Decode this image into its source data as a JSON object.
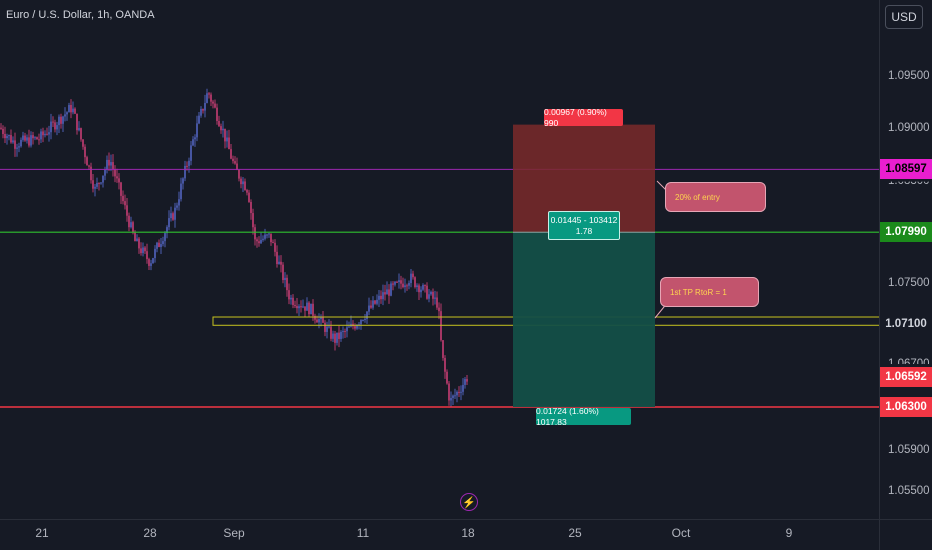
{
  "header": {
    "symbol_text": "Euro / U.S. Dollar, 1h, OANDA",
    "currency_button": "USD"
  },
  "price_axis": {
    "ticks": [
      "1.09500",
      "1.09000",
      "1.07500",
      "1.05900",
      "1.05500"
    ],
    "partial_ticks": [
      "1.08300",
      "1.06700"
    ]
  },
  "price_badges": [
    {
      "name": "badge-purple-level",
      "label": "1.08597",
      "price": 1.08597,
      "bg": "#e91ecf",
      "fg": "#000000"
    },
    {
      "name": "badge-green-level",
      "label": "1.07990",
      "price": 1.0799,
      "bg": "#1b8a1b",
      "fg": "#ffffff"
    },
    {
      "name": "badge-yellow-level",
      "label": "1.07100",
      "price": 1.071,
      "bg": "#161a25",
      "fg": "#d1d4dc"
    },
    {
      "name": "badge-last-price",
      "label": "1.06592",
      "price": 1.06592,
      "bg": "#f23645",
      "fg": "#ffffff"
    },
    {
      "name": "badge-red-level",
      "label": "1.06300",
      "price": 1.063,
      "bg": "#f23645",
      "fg": "#ffffff"
    }
  ],
  "time_axis": {
    "ticks": [
      "21",
      "28",
      "Sep",
      "11",
      "18",
      "25",
      "Oct",
      "9"
    ]
  },
  "position_tool": {
    "stop_label": "0.00967 (0.90%) 990",
    "entry_label_line1": "0.01445 - 103412",
    "entry_label_line2": "1.78",
    "target_label": "0.01724 (1.60%) 1017.83"
  },
  "callouts": {
    "entry_note": "20% of entry",
    "tp_note": "1st TP RtoR = 1"
  },
  "colors": {
    "background": "#161a25",
    "up_candle": "#5b6fd6",
    "down_candle": "#e0437f",
    "stop_zone": "#7a2a2a",
    "target_zone": "#134f47",
    "green_line": "#2fbf2f",
    "red_line": "#f23645",
    "purple_line": "#9c27b0",
    "yellow_zone": "#c7c31f"
  },
  "icons": {
    "flash": "lightning-icon"
  }
}
